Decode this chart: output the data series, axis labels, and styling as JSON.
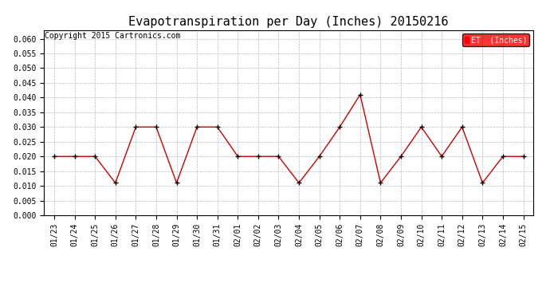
{
  "title": "Evapotranspiration per Day (Inches) 20150216",
  "copyright_text": "Copyright 2015 Cartronics.com",
  "legend_label": "ET  (Inches)",
  "legend_bg": "#ff0000",
  "legend_text_color": "#ffffff",
  "dates": [
    "01/23",
    "01/24",
    "01/25",
    "01/26",
    "01/27",
    "01/28",
    "01/29",
    "01/30",
    "01/31",
    "02/01",
    "02/02",
    "02/03",
    "02/04",
    "02/05",
    "02/06",
    "02/07",
    "02/08",
    "02/09",
    "02/10",
    "02/11",
    "02/12",
    "02/13",
    "02/14",
    "02/15"
  ],
  "values": [
    0.02,
    0.02,
    0.02,
    0.011,
    0.03,
    0.03,
    0.011,
    0.03,
    0.03,
    0.02,
    0.02,
    0.02,
    0.011,
    0.02,
    0.03,
    0.041,
    0.011,
    0.02,
    0.03,
    0.02,
    0.03,
    0.011,
    0.02,
    0.02
  ],
  "ylim": [
    0.0,
    0.063
  ],
  "yticks": [
    0.0,
    0.005,
    0.01,
    0.015,
    0.02,
    0.025,
    0.03,
    0.035,
    0.04,
    0.045,
    0.05,
    0.055,
    0.06
  ],
  "line_color": "#cc0000",
  "marker_color": "#000000",
  "bg_color": "#ffffff",
  "grid_color": "#bbbbbb",
  "title_fontsize": 11,
  "tick_fontsize": 7,
  "copyright_fontsize": 7
}
